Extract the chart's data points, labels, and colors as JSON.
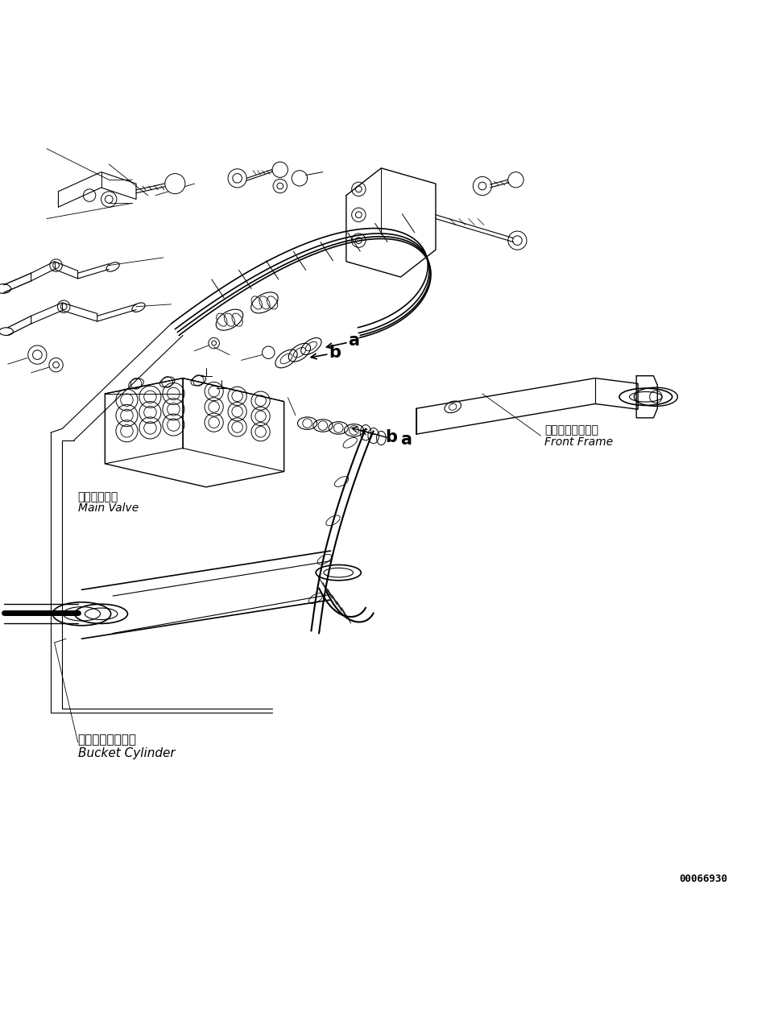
{
  "background_color": "#ffffff",
  "part_number": "00066930",
  "labels": {
    "front_frame_jp": "フロントフレーム",
    "front_frame_en": "Front Frame",
    "main_valve_jp": "メインバルブ",
    "main_valve_en": "Main Valve",
    "bucket_cylinder_jp": "バケットシリンダ",
    "bucket_cylinder_en": "Bucket Cylinder"
  },
  "line_color": "#000000",
  "text_color": "#000000",
  "fig_width": 9.66,
  "fig_height": 12.58,
  "dpi": 100
}
